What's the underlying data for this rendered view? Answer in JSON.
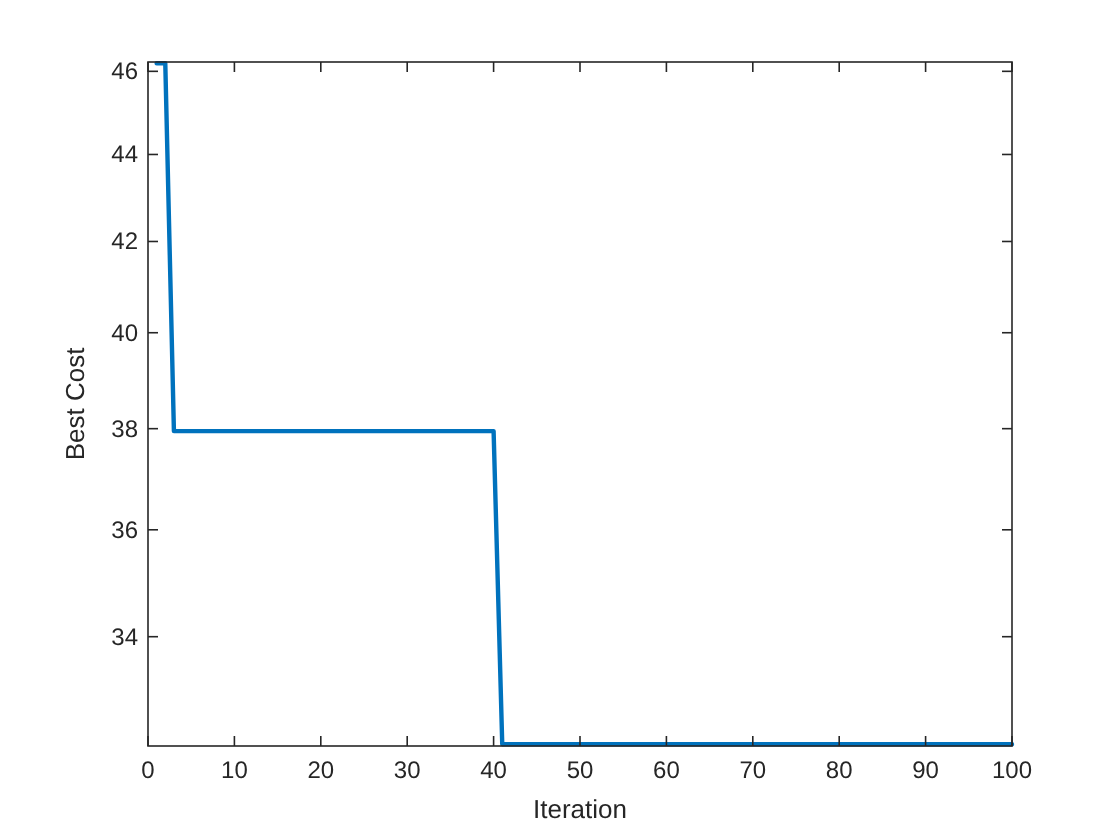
{
  "chart_data": {
    "type": "line",
    "xlabel": "Iteration",
    "ylabel": "Best Cost",
    "x": [
      1,
      2,
      3,
      40,
      41,
      100
    ],
    "series": [
      {
        "color": "#0072bd",
        "values": [
          46.2,
          46.2,
          37.95,
          37.95,
          32.1,
          32.1
        ]
      }
    ],
    "xlim": [
      0,
      100
    ],
    "xticks": [
      0,
      10,
      20,
      30,
      40,
      50,
      60,
      70,
      80,
      90,
      100
    ],
    "ylim": [
      32.07,
      46.23
    ],
    "yticks": [
      34,
      36,
      38,
      40,
      42,
      44,
      46
    ],
    "log": "y",
    "grid": false,
    "marker": "none",
    "line_style": "solid"
  }
}
